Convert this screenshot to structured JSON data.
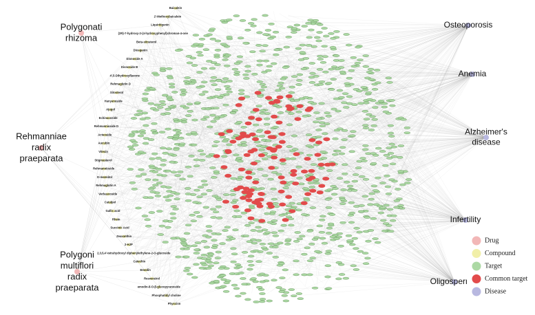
{
  "drugs": [
    {
      "lines": [
        "Polygonati",
        "rhizoma"
      ]
    },
    {
      "lines": [
        "Rehmanniae",
        "radix",
        "praeparata"
      ]
    },
    {
      "lines": [
        "Polygoni",
        "multiflori",
        "radix",
        "praeparata"
      ]
    }
  ],
  "diseases": [
    {
      "lines": [
        "Osteoporosis"
      ]
    },
    {
      "lines": [
        "Anemia"
      ]
    },
    {
      "lines": [
        "Alzheimer's",
        "disease"
      ]
    },
    {
      "lines": [
        "Infertility"
      ]
    },
    {
      "lines": [
        "Oligospermia"
      ]
    }
  ],
  "compounds": [
    "Baicalein",
    "2'-Methoxybaicalein",
    "Liquiritigenin",
    "(2R)-7-hydroxy-2-(4-hydroxyphenyl)chroman-4-one",
    "Beta-sitosterol",
    "Diosgenin",
    "Disnoside A",
    "Disnoside B",
    "4',5-Dihydroxyflavone",
    "Rehmaglutin D",
    "Sitosterol",
    "Hanyanoside",
    "Ajugol",
    "Echinacoside",
    "Rehmannioside D",
    "Acteoside",
    "Aucubin",
    "Vitexin",
    "Stigmasterol",
    "Rehmannioside",
    "D-mannitol",
    "Rehmaglutin A",
    "Verbascoside",
    "Catalpol",
    "Gallic acid",
    "Rhein",
    "Succinic Acid",
    "Zeaxanthin",
    "2-HJP",
    "2,3,5,4'-tetrahydroxyl diphenylethylene-2-O-glucoside",
    "Catechin",
    "Emodin",
    "Resveratrol",
    "emodin-8-O-β-glucopyranoside",
    "Phosphatidyl choline",
    "Physcion"
  ],
  "legend": [
    {
      "label": "Drug",
      "color": "#f2b7b7"
    },
    {
      "label": "Compound",
      "color": "#f1efa8"
    },
    {
      "label": "Target",
      "color": "#acd9a4"
    },
    {
      "label": "Common target",
      "color": "#e24b4b"
    },
    {
      "label": "Disease",
      "color": "#b8b8e0"
    }
  ]
}
